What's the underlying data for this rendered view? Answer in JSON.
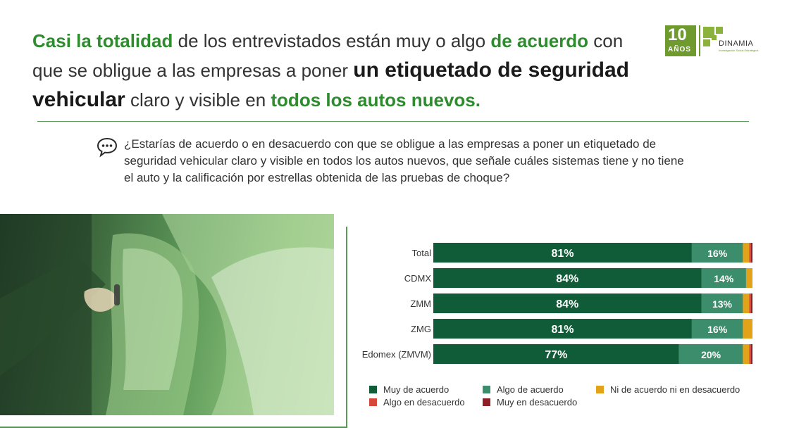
{
  "headline": {
    "p1": "Casi la totalidad",
    "p2": " de los entrevistados están muy o algo ",
    "p3": "de acuerdo",
    "p4": " con que se obligue a las empresas a poner ",
    "p5": "un etiquetado de seguridad vehicular",
    "p6": " claro y visible en ",
    "p7": "todos los autos nuevos."
  },
  "logo": {
    "number": "10",
    "years": "AÑOS",
    "brand": "DINAMIA",
    "tagline": "Investigación Social Estratégica",
    "color": "#6f9a2e"
  },
  "question": {
    "icon": "chat-bubble-icon",
    "text": "¿Estarías de acuerdo o en desacuerdo con que se obligue a las empresas a poner un etiquetado de seguridad vehicular claro y visible en todos los autos nuevos, que señale cuáles sistemas tiene y no tiene el auto y la calificación por estrellas obtenida de las pruebas de choque?"
  },
  "chart_data": {
    "type": "bar",
    "orientation": "horizontal",
    "stacked": true,
    "percent": true,
    "categories": [
      "Total",
      "CDMX",
      "ZMM",
      "ZMG",
      "Edomex (ZMVM)"
    ],
    "series": [
      {
        "name": "Muy de acuerdo",
        "color": "#115c38",
        "values": [
          81,
          84,
          84,
          81,
          77
        ],
        "labels": [
          "81%",
          "84%",
          "84%",
          "81%",
          "77%"
        ]
      },
      {
        "name": "Algo de acuerdo",
        "color": "#3b8d6b",
        "values": [
          16,
          14,
          13,
          16,
          20
        ],
        "labels": [
          "16%",
          "14%",
          "13%",
          "16%",
          "20%"
        ]
      },
      {
        "name": "Ni de acuerdo ni en desacuerdo",
        "color": "#e2a21a",
        "values": [
          2,
          2,
          2,
          3,
          2
        ]
      },
      {
        "name": "Algo en desacuerdo",
        "color": "#d6473a",
        "values": [
          0.5,
          0,
          0.5,
          0,
          0.5
        ]
      },
      {
        "name": "Muy en desacuerdo",
        "color": "#8e1f24",
        "values": [
          0.5,
          0,
          0.5,
          0,
          0.5
        ]
      }
    ],
    "xlim": [
      0,
      100
    ],
    "grid": false,
    "legend": "bottom"
  }
}
